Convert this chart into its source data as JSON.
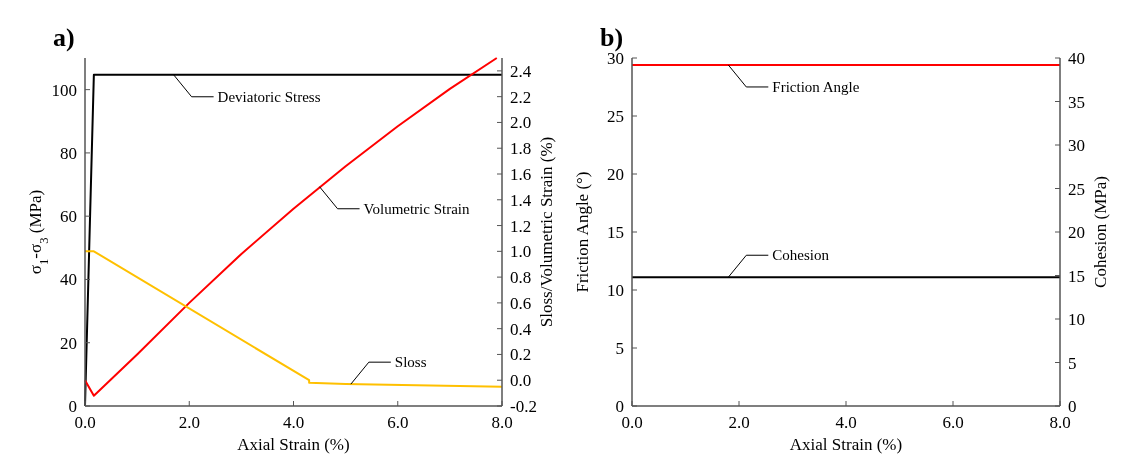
{
  "chart_data": [
    {
      "type": "line",
      "title": "a)",
      "xlabel": "Axial Strain (%)",
      "ylabel": "σ$_{1}$-σ$_{3}$ (MPa)",
      "y2label": "Sloss/Volumetric Strain (%)",
      "xlim": [
        0,
        8
      ],
      "xticks": [
        {
          "value": 0,
          "label": "0.0"
        },
        {
          "value": 2,
          "label": "2.0"
        },
        {
          "value": 4,
          "label": "4.0"
        },
        {
          "value": 6,
          "label": "6.0"
        },
        {
          "value": 8,
          "label": "8.0"
        }
      ],
      "ylim": [
        0,
        110
      ],
      "yticks": [
        0,
        20,
        40,
        60,
        80,
        100
      ],
      "y2lim": [
        -0.2,
        2.5
      ],
      "y2ticks": [
        -0.2,
        {
          "value": 0,
          "label": "0.0"
        },
        0.2,
        0.4,
        0.6,
        0.8,
        {
          "value": 1,
          "label": "1.0"
        },
        1.2,
        1.4,
        1.6,
        1.8,
        {
          "value": 2,
          "label": "2.0"
        },
        2.2,
        2.4
      ],
      "grid": false,
      "marker": "none",
      "line_style": "solid",
      "series": [
        {
          "color": "#000000",
          "x": [
            0,
            0.17,
            8
          ],
          "values": [
            0,
            104.7,
            104.7
          ]
        },
        {
          "color": "#ff0000",
          "axis": "y2",
          "x": [
            0,
            0.17,
            1,
            2,
            3,
            4,
            5,
            6,
            7,
            7.9
          ],
          "values": [
            0,
            -0.12,
            0.2,
            0.6,
            0.98,
            1.33,
            1.66,
            1.97,
            2.26,
            2.5
          ]
        },
        {
          "color": "#ffc000",
          "axis": "y2",
          "x": [
            0,
            0.17,
            4.3,
            4.3,
            5,
            8
          ],
          "values": [
            1,
            1,
            0,
            -0.02,
            -0.03,
            -0.05
          ]
        }
      ],
      "annotations": [
        {
          "text": "Deviatoric Stress",
          "x": 1.7,
          "y": 104.7
        },
        {
          "text": "Volumetric Strain",
          "x": 4.5,
          "y": 69.3
        },
        {
          "text": "Sloss",
          "x": 5.1,
          "y": 6.9
        }
      ]
    },
    {
      "type": "line",
      "title": "b)",
      "xlabel": "Axial Strain (%)",
      "ylabel": "Friction Angle (°)",
      "y2label": "Cohesion (MPa)",
      "xlim": [
        0,
        8
      ],
      "xticks": [
        {
          "value": 0,
          "label": "0.0"
        },
        {
          "value": 2,
          "label": "2.0"
        },
        {
          "value": 4,
          "label": "4.0"
        },
        {
          "value": 6,
          "label": "6.0"
        },
        {
          "value": 8,
          "label": "8.0"
        }
      ],
      "ylim": [
        0,
        30
      ],
      "yticks": [
        0,
        5,
        10,
        15,
        20,
        25,
        30
      ],
      "y2lim": [
        0,
        40
      ],
      "y2ticks": [
        0,
        5,
        10,
        15,
        20,
        25,
        30,
        35,
        40
      ],
      "grid": false,
      "marker": "none",
      "line_style": "solid",
      "series": [
        {
          "color": "#ff0000",
          "x": [
            0,
            8
          ],
          "values": [
            29.4,
            29.4
          ]
        },
        {
          "color": "#000000",
          "axis": "y2",
          "x": [
            0,
            8
          ],
          "values": [
            14.8,
            14.8
          ]
        }
      ],
      "annotations": [
        {
          "text": "Friction Angle",
          "x": 1.8,
          "y": 29.4
        },
        {
          "text": "Cohesion",
          "x": 1.8,
          "y": 11.1
        }
      ]
    }
  ]
}
